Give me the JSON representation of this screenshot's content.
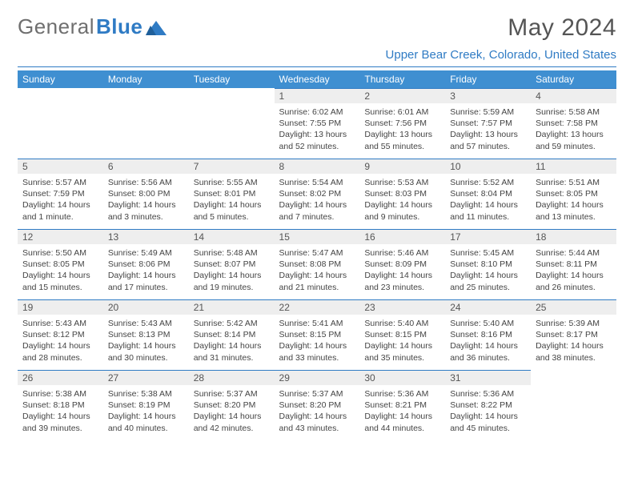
{
  "brand": {
    "part1": "General",
    "part2": "Blue"
  },
  "title": "May 2024",
  "location": "Upper Bear Creek, Colorado, United States",
  "headers": [
    "Sunday",
    "Monday",
    "Tuesday",
    "Wednesday",
    "Thursday",
    "Friday",
    "Saturday"
  ],
  "colors": {
    "accent": "#2f7bc4",
    "header_bg": "#3f8fd1",
    "daynum_bg": "#eeeeee",
    "text": "#444444",
    "logo_gray": "#6f6f6f"
  },
  "weeks": [
    [
      {
        "n": "",
        "sunrise": "",
        "sunset": "",
        "daylight": ""
      },
      {
        "n": "",
        "sunrise": "",
        "sunset": "",
        "daylight": ""
      },
      {
        "n": "",
        "sunrise": "",
        "sunset": "",
        "daylight": ""
      },
      {
        "n": "1",
        "sunrise": "6:02 AM",
        "sunset": "7:55 PM",
        "daylight": "13 hours and 52 minutes."
      },
      {
        "n": "2",
        "sunrise": "6:01 AM",
        "sunset": "7:56 PM",
        "daylight": "13 hours and 55 minutes."
      },
      {
        "n": "3",
        "sunrise": "5:59 AM",
        "sunset": "7:57 PM",
        "daylight": "13 hours and 57 minutes."
      },
      {
        "n": "4",
        "sunrise": "5:58 AM",
        "sunset": "7:58 PM",
        "daylight": "13 hours and 59 minutes."
      }
    ],
    [
      {
        "n": "5",
        "sunrise": "5:57 AM",
        "sunset": "7:59 PM",
        "daylight": "14 hours and 1 minute."
      },
      {
        "n": "6",
        "sunrise": "5:56 AM",
        "sunset": "8:00 PM",
        "daylight": "14 hours and 3 minutes."
      },
      {
        "n": "7",
        "sunrise": "5:55 AM",
        "sunset": "8:01 PM",
        "daylight": "14 hours and 5 minutes."
      },
      {
        "n": "8",
        "sunrise": "5:54 AM",
        "sunset": "8:02 PM",
        "daylight": "14 hours and 7 minutes."
      },
      {
        "n": "9",
        "sunrise": "5:53 AM",
        "sunset": "8:03 PM",
        "daylight": "14 hours and 9 minutes."
      },
      {
        "n": "10",
        "sunrise": "5:52 AM",
        "sunset": "8:04 PM",
        "daylight": "14 hours and 11 minutes."
      },
      {
        "n": "11",
        "sunrise": "5:51 AM",
        "sunset": "8:05 PM",
        "daylight": "14 hours and 13 minutes."
      }
    ],
    [
      {
        "n": "12",
        "sunrise": "5:50 AM",
        "sunset": "8:05 PM",
        "daylight": "14 hours and 15 minutes."
      },
      {
        "n": "13",
        "sunrise": "5:49 AM",
        "sunset": "8:06 PM",
        "daylight": "14 hours and 17 minutes."
      },
      {
        "n": "14",
        "sunrise": "5:48 AM",
        "sunset": "8:07 PM",
        "daylight": "14 hours and 19 minutes."
      },
      {
        "n": "15",
        "sunrise": "5:47 AM",
        "sunset": "8:08 PM",
        "daylight": "14 hours and 21 minutes."
      },
      {
        "n": "16",
        "sunrise": "5:46 AM",
        "sunset": "8:09 PM",
        "daylight": "14 hours and 23 minutes."
      },
      {
        "n": "17",
        "sunrise": "5:45 AM",
        "sunset": "8:10 PM",
        "daylight": "14 hours and 25 minutes."
      },
      {
        "n": "18",
        "sunrise": "5:44 AM",
        "sunset": "8:11 PM",
        "daylight": "14 hours and 26 minutes."
      }
    ],
    [
      {
        "n": "19",
        "sunrise": "5:43 AM",
        "sunset": "8:12 PM",
        "daylight": "14 hours and 28 minutes."
      },
      {
        "n": "20",
        "sunrise": "5:43 AM",
        "sunset": "8:13 PM",
        "daylight": "14 hours and 30 minutes."
      },
      {
        "n": "21",
        "sunrise": "5:42 AM",
        "sunset": "8:14 PM",
        "daylight": "14 hours and 31 minutes."
      },
      {
        "n": "22",
        "sunrise": "5:41 AM",
        "sunset": "8:15 PM",
        "daylight": "14 hours and 33 minutes."
      },
      {
        "n": "23",
        "sunrise": "5:40 AM",
        "sunset": "8:15 PM",
        "daylight": "14 hours and 35 minutes."
      },
      {
        "n": "24",
        "sunrise": "5:40 AM",
        "sunset": "8:16 PM",
        "daylight": "14 hours and 36 minutes."
      },
      {
        "n": "25",
        "sunrise": "5:39 AM",
        "sunset": "8:17 PM",
        "daylight": "14 hours and 38 minutes."
      }
    ],
    [
      {
        "n": "26",
        "sunrise": "5:38 AM",
        "sunset": "8:18 PM",
        "daylight": "14 hours and 39 minutes."
      },
      {
        "n": "27",
        "sunrise": "5:38 AM",
        "sunset": "8:19 PM",
        "daylight": "14 hours and 40 minutes."
      },
      {
        "n": "28",
        "sunrise": "5:37 AM",
        "sunset": "8:20 PM",
        "daylight": "14 hours and 42 minutes."
      },
      {
        "n": "29",
        "sunrise": "5:37 AM",
        "sunset": "8:20 PM",
        "daylight": "14 hours and 43 minutes."
      },
      {
        "n": "30",
        "sunrise": "5:36 AM",
        "sunset": "8:21 PM",
        "daylight": "14 hours and 44 minutes."
      },
      {
        "n": "31",
        "sunrise": "5:36 AM",
        "sunset": "8:22 PM",
        "daylight": "14 hours and 45 minutes."
      },
      {
        "n": "",
        "sunrise": "",
        "sunset": "",
        "daylight": ""
      }
    ]
  ]
}
